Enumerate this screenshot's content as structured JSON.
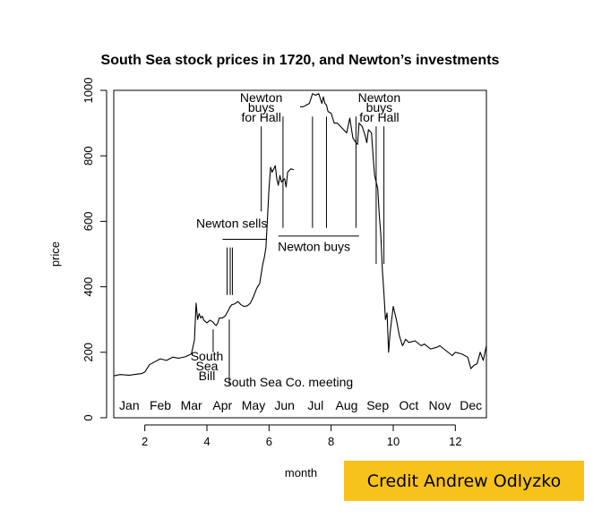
{
  "credit_text": "Credit Andrew Odlyzko",
  "chart_data": {
    "type": "line",
    "title": "South Sea stock prices in 1720, and Newton’s investments",
    "xlabel": "month",
    "ylabel": "price",
    "xlim": [
      1,
      13
    ],
    "ylim": [
      0,
      1000
    ],
    "x_ticks": [
      2,
      4,
      6,
      8,
      10,
      12
    ],
    "y_ticks": [
      0,
      200,
      400,
      600,
      800,
      1000
    ],
    "month_labels": [
      "Jan",
      "Feb",
      "Mar",
      "Apr",
      "May",
      "Jun",
      "Jul",
      "Aug",
      "Sep",
      "Oct",
      "Nov",
      "Dec"
    ],
    "grid": false,
    "series": [
      {
        "x": [
          1.0,
          1.2,
          1.5,
          1.9,
          2.0,
          2.15,
          2.3,
          2.5,
          2.7,
          2.9,
          3.1,
          3.3,
          3.5,
          3.6,
          3.65,
          3.7,
          3.75,
          3.8,
          3.85,
          3.9,
          4.0,
          4.1,
          4.2,
          4.25,
          4.3,
          4.35,
          4.4,
          4.5,
          4.6,
          4.7,
          4.75,
          4.8,
          4.9,
          5.0,
          5.1,
          5.2,
          5.3,
          5.4,
          5.5,
          5.6,
          5.7,
          5.8,
          5.85,
          5.9,
          6.0,
          6.05,
          6.1,
          6.2,
          6.25,
          6.3,
          6.35,
          6.4,
          6.5,
          6.55,
          6.6,
          6.7,
          6.8
        ],
        "y": [
          128,
          132,
          130,
          135,
          140,
          162,
          170,
          180,
          175,
          185,
          182,
          186,
          195,
          238,
          350,
          300,
          318,
          305,
          310,
          298,
          290,
          298,
          292,
          285,
          282,
          290,
          305,
          305,
          312,
          330,
          340,
          345,
          348,
          355,
          345,
          340,
          342,
          350,
          370,
          395,
          410,
          470,
          490,
          520,
          700,
          765,
          750,
          770,
          730,
          710,
          740,
          720,
          730,
          705,
          750,
          760,
          758
        ]
      },
      {
        "x": [
          7.0,
          7.1,
          7.2,
          7.3,
          7.4,
          7.5,
          7.6,
          7.7,
          7.75,
          7.8,
          7.85,
          7.9,
          8.0,
          8.1,
          8.2,
          8.3,
          8.4,
          8.5,
          8.6,
          8.7,
          8.8,
          8.85,
          8.9,
          9.0,
          9.05,
          9.1,
          9.15,
          9.2,
          9.3,
          9.35,
          9.4,
          9.5,
          9.55,
          9.6,
          9.65,
          9.7,
          9.75,
          9.8,
          9.85,
          9.9,
          10.0,
          10.1,
          10.2,
          10.3,
          10.4,
          10.5,
          10.7,
          10.9,
          11.0,
          11.2,
          11.4,
          11.5,
          11.7,
          11.9,
          12.0,
          12.2,
          12.4,
          12.5,
          12.6,
          12.7,
          12.8,
          12.9,
          13.0
        ],
        "y": [
          950,
          950,
          955,
          960,
          990,
          985,
          990,
          960,
          980,
          960,
          955,
          935,
          930,
          900,
          900,
          890,
          880,
          870,
          915,
          855,
          840,
          835,
          900,
          890,
          875,
          860,
          840,
          880,
          870,
          800,
          740,
          700,
          620,
          560,
          450,
          380,
          300,
          320,
          200,
          260,
          340,
          300,
          250,
          220,
          240,
          230,
          235,
          220,
          225,
          210,
          215,
          220,
          205,
          190,
          200,
          195,
          185,
          150,
          160,
          165,
          200,
          175,
          220
        ]
      }
    ],
    "annotations": [
      {
        "lines": [
          "Newton",
          "buys",
          "for Hall"
        ],
        "x": 5.75,
        "y": 965,
        "line_x": [
          5.75
        ],
        "line_y": [
          630,
          890
        ]
      },
      {
        "lines": [
          "Newton",
          "buys",
          "for Hall"
        ],
        "x": 9.55,
        "y": 965,
        "line_x": [
          9.45,
          9.7
        ],
        "line_y": [
          470,
          890
        ]
      },
      {
        "lines": [
          "Newton sells"
        ],
        "x": 4.8,
        "y": 580,
        "line_x": [
          4.65,
          4.75,
          4.82
        ],
        "line_y": [
          375,
          520
        ],
        "bar_x": [
          4.5,
          5.9
        ],
        "bar_y": 545
      },
      {
        "lines": [
          "Newton buys"
        ],
        "x": 7.45,
        "y": 510,
        "line_x": [
          6.45,
          7.4,
          7.85,
          8.8
        ],
        "line_y": [
          580,
          920
        ],
        "bar_x": [
          6.3,
          8.9
        ],
        "bar_y": 555
      },
      {
        "lines": [
          "South",
          "Sea",
          "Bill"
        ],
        "x": 4.0,
        "y": 175,
        "line_x": [
          4.2
        ],
        "line_y": [
          200,
          270
        ]
      },
      {
        "lines": [
          "South Sea Co. meeting"
        ],
        "x": 6.62,
        "y": 95,
        "line_x": [
          4.72
        ],
        "line_y": [
          100,
          300
        ]
      }
    ]
  }
}
